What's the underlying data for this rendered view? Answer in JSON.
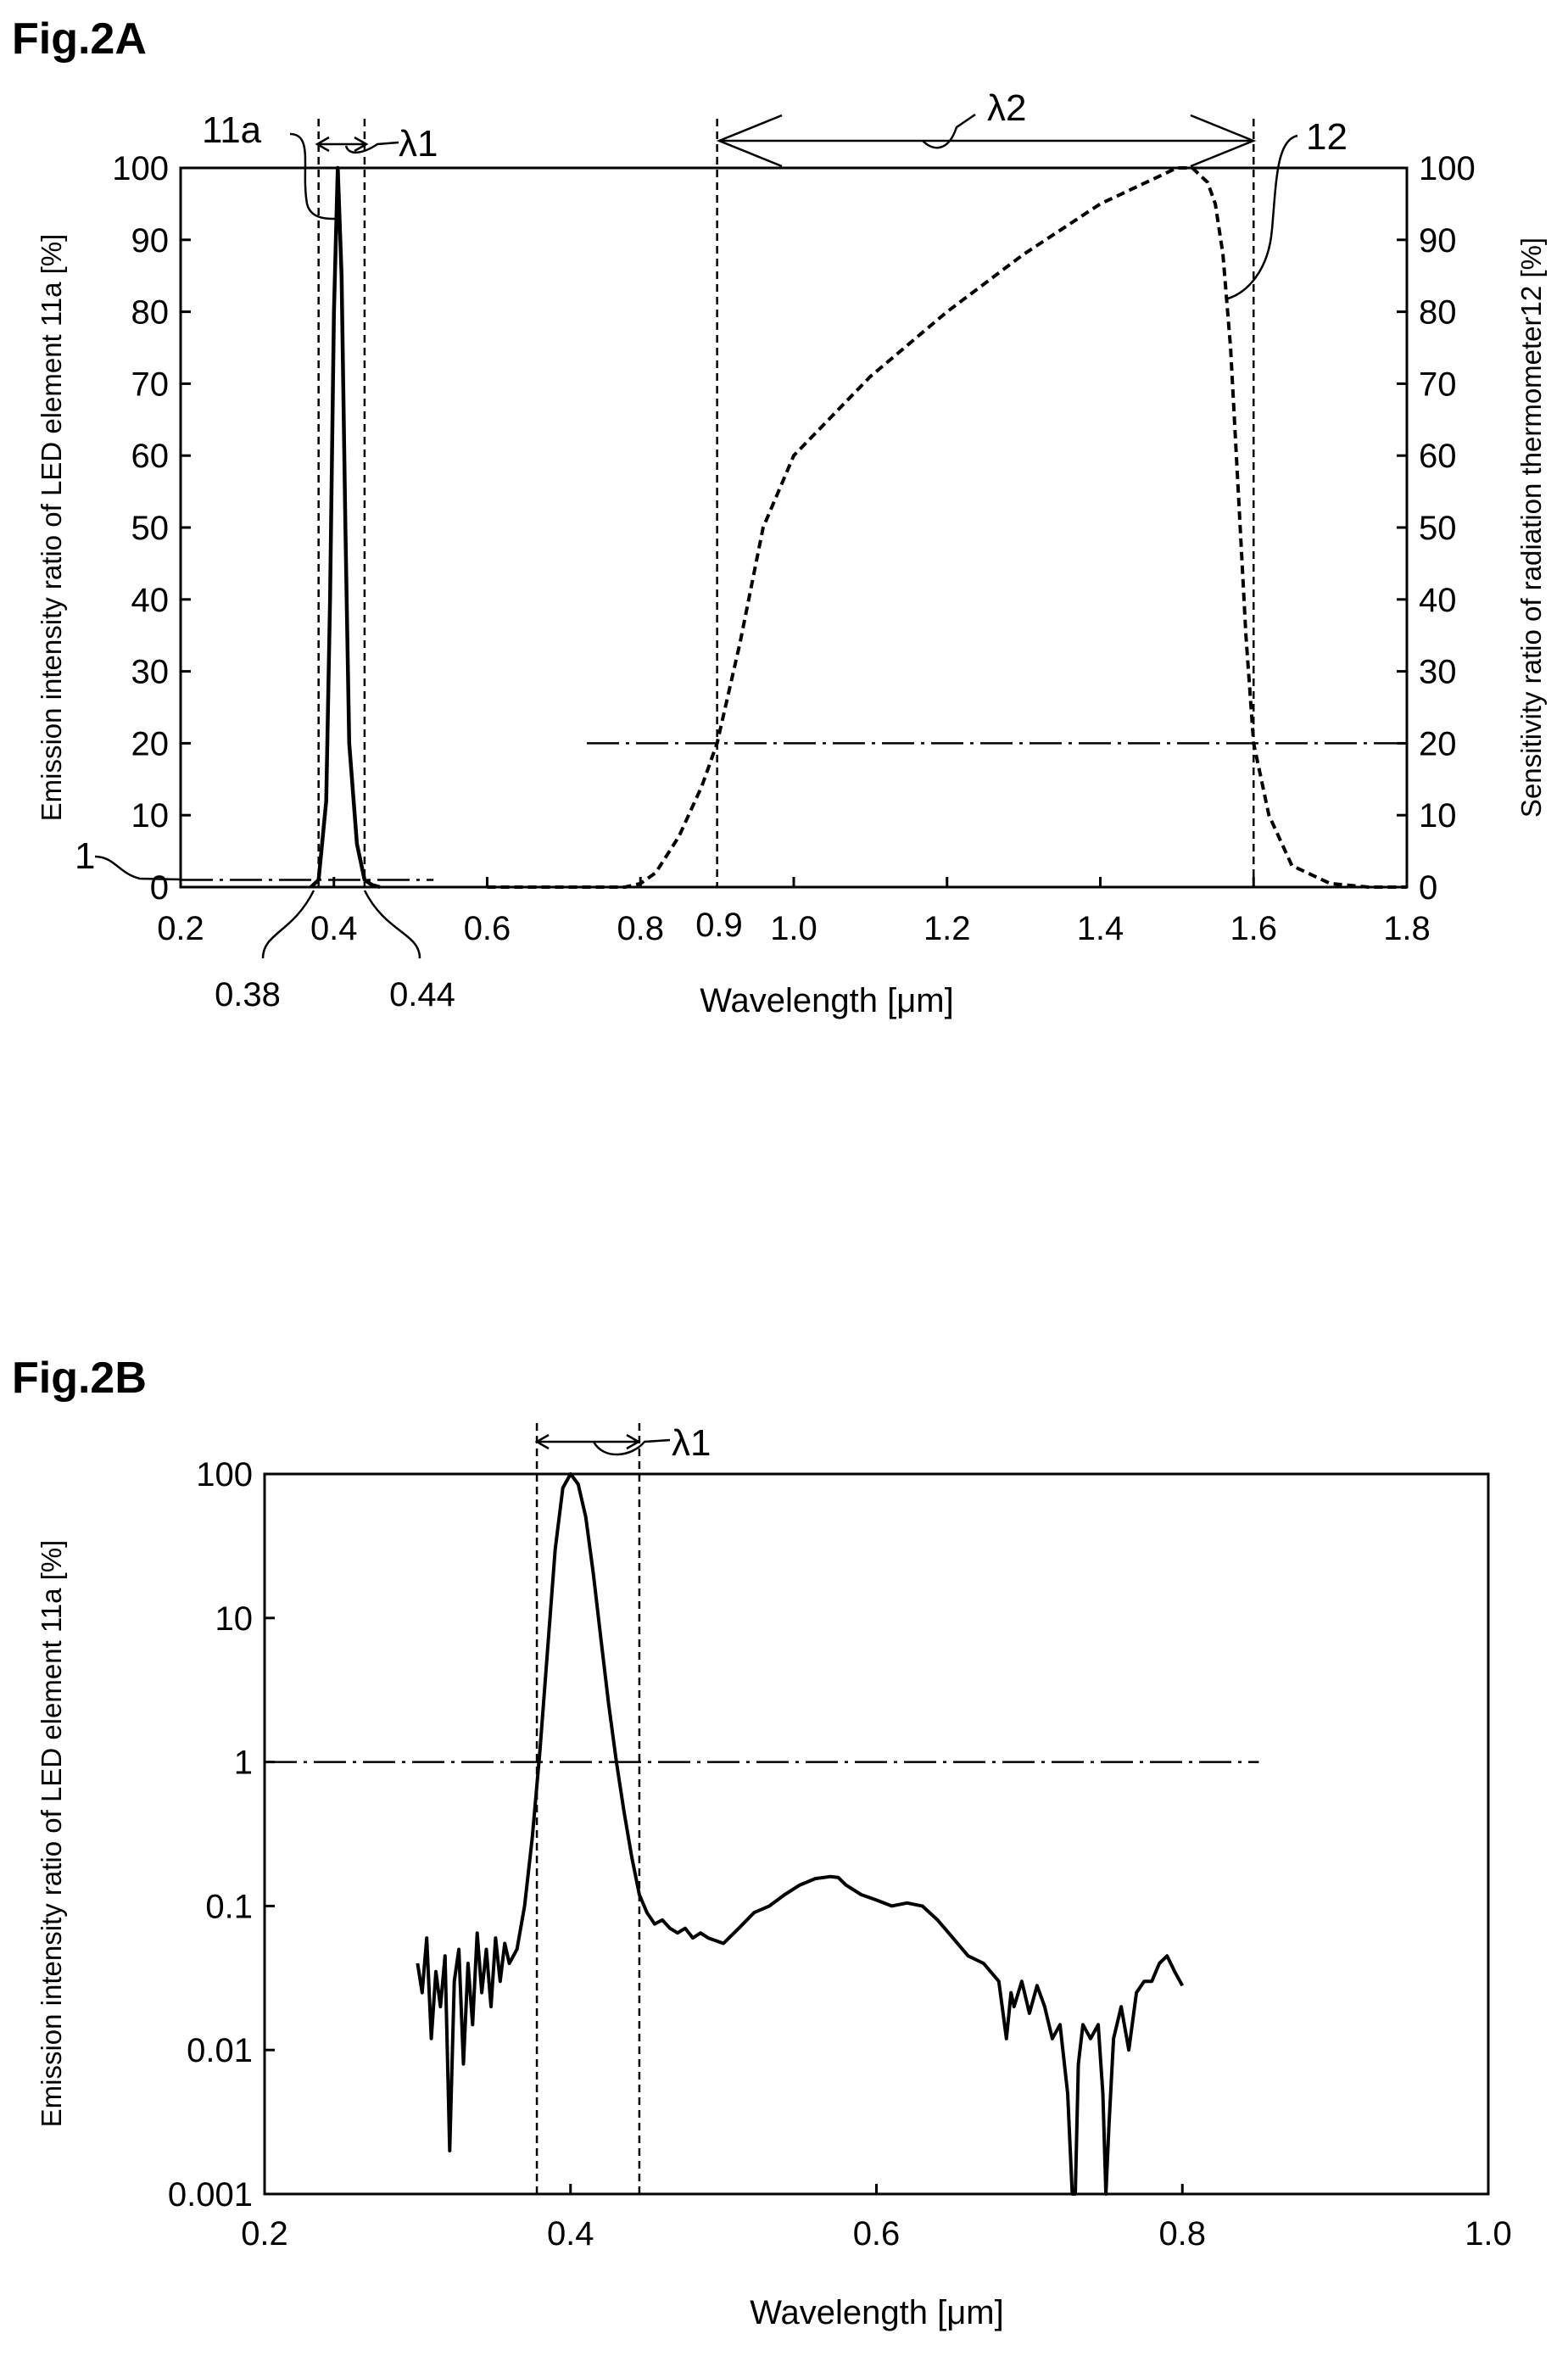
{
  "chart_data": [
    {
      "id": "fig2a",
      "type": "line",
      "title": "Fig.2A",
      "xlabel": "Wavelength [μm]",
      "ylabel_left": "Emission intensity ratio of LED element 11a [%]",
      "ylabel_right": "Sensitivity ratio of radiation thermometer12 [%]",
      "xlim": [
        0.2,
        1.8
      ],
      "ylim": [
        0,
        100
      ],
      "xticks": [
        "0.2",
        "0.4",
        "0.6",
        "0.8",
        "1.0",
        "1.2",
        "1.4",
        "1.6",
        "1.8"
      ],
      "yticks": [
        "0",
        "10",
        "20",
        "30",
        "40",
        "50",
        "60",
        "70",
        "80",
        "90",
        "100"
      ],
      "extra_xticks": [
        "0.9",
        "0.38",
        "0.44"
      ],
      "grid": false,
      "annotations": {
        "led_label": "11a",
        "thermometer_label": "12",
        "band1_label": "λ1",
        "band2_label": "λ2",
        "threshold1_label": "1"
      },
      "series": [
        {
          "x": [
            0.37,
            0.38,
            0.39,
            0.395,
            0.4,
            0.405,
            0.41,
            0.415,
            0.42,
            0.43,
            0.44,
            0.45,
            0.46
          ],
          "y": [
            0,
            1,
            12,
            40,
            80,
            100,
            85,
            50,
            20,
            6,
            1,
            0.3,
            0
          ],
          "style": "solid"
        },
        {
          "x": [
            0.6,
            0.78,
            0.8,
            0.82,
            0.85,
            0.88,
            0.9,
            0.93,
            0.96,
            1.0,
            1.1,
            1.2,
            1.3,
            1.4,
            1.48,
            1.5,
            1.52,
            1.54,
            1.55,
            1.56,
            1.57,
            1.58,
            1.59,
            1.6,
            1.62,
            1.65,
            1.7,
            1.75,
            1.8
          ],
          "y": [
            0,
            0,
            0.5,
            2,
            7,
            14,
            20,
            34,
            50,
            60,
            71,
            80,
            88,
            95,
            99,
            100,
            100,
            98,
            95,
            88,
            75,
            55,
            35,
            20,
            10,
            3,
            0.5,
            0,
            0
          ],
          "style": "dashed"
        }
      ],
      "reference_lines": [
        {
          "orientation": "horizontal",
          "y": 1,
          "x_range": [
            0.2,
            0.53
          ]
        },
        {
          "orientation": "horizontal",
          "y": 20,
          "x_range": [
            0.73,
            1.8
          ]
        },
        {
          "orientation": "vertical",
          "x": 0.38
        },
        {
          "orientation": "vertical",
          "x": 0.44
        },
        {
          "orientation": "vertical",
          "x": 0.9
        },
        {
          "orientation": "vertical",
          "x": 1.6
        }
      ]
    },
    {
      "id": "fig2b",
      "type": "line",
      "title": "Fig.2B",
      "xlabel": "Wavelength [μm]",
      "ylabel": "Emission intensity ratio of LED element 11a [%]",
      "yscale": "log",
      "xlim": [
        0.2,
        1.0
      ],
      "ylim": [
        0.001,
        100
      ],
      "xticks": [
        "0.2",
        "0.4",
        "0.6",
        "0.8",
        "1.0"
      ],
      "yticks": [
        "0.001",
        "0.01",
        "0.1",
        "1",
        "10",
        "100"
      ],
      "grid": false,
      "annotations": {
        "band1_label": "λ1"
      },
      "series": [
        {
          "x": [
            0.3,
            0.303,
            0.306,
            0.309,
            0.312,
            0.315,
            0.318,
            0.321,
            0.324,
            0.327,
            0.33,
            0.333,
            0.336,
            0.339,
            0.342,
            0.345,
            0.348,
            0.351,
            0.354,
            0.357,
            0.36,
            0.365,
            0.37,
            0.375,
            0.38,
            0.385,
            0.39,
            0.395,
            0.4,
            0.405,
            0.41,
            0.415,
            0.42,
            0.425,
            0.43,
            0.435,
            0.44,
            0.445,
            0.45,
            0.455,
            0.46,
            0.465,
            0.47,
            0.475,
            0.48,
            0.485,
            0.49,
            0.5,
            0.51,
            0.52,
            0.53,
            0.54,
            0.55,
            0.56,
            0.57,
            0.575,
            0.58,
            0.59,
            0.6,
            0.61,
            0.62,
            0.63,
            0.64,
            0.65,
            0.66,
            0.67,
            0.68,
            0.685,
            0.688,
            0.69,
            0.695,
            0.7,
            0.705,
            0.71,
            0.715,
            0.72,
            0.725,
            0.728,
            0.73,
            0.732,
            0.735,
            0.74,
            0.745,
            0.748,
            0.75,
            0.752,
            0.755,
            0.76,
            0.765,
            0.77,
            0.775,
            0.78,
            0.785,
            0.79,
            0.795,
            0.8
          ],
          "y": [
            0.04,
            0.025,
            0.06,
            0.012,
            0.035,
            0.02,
            0.045,
            0.002,
            0.03,
            0.05,
            0.008,
            0.04,
            0.015,
            0.065,
            0.025,
            0.05,
            0.02,
            0.06,
            0.03,
            0.055,
            0.04,
            0.05,
            0.1,
            0.3,
            1.2,
            6,
            30,
            80,
            100,
            85,
            50,
            20,
            7,
            2.5,
            1,
            0.45,
            0.22,
            0.12,
            0.09,
            0.075,
            0.08,
            0.07,
            0.065,
            0.07,
            0.06,
            0.065,
            0.06,
            0.055,
            0.07,
            0.09,
            0.1,
            0.12,
            0.14,
            0.155,
            0.16,
            0.158,
            0.14,
            0.12,
            0.11,
            0.1,
            0.105,
            0.1,
            0.08,
            0.06,
            0.045,
            0.04,
            0.03,
            0.012,
            0.025,
            0.02,
            0.03,
            0.018,
            0.028,
            0.02,
            0.012,
            0.015,
            0.005,
            0.001,
            0.001,
            0.008,
            0.015,
            0.012,
            0.015,
            0.005,
            0.001,
            0.003,
            0.012,
            0.02,
            0.01,
            0.025,
            0.03,
            0.03,
            0.04,
            0.045,
            0.035,
            0.028
          ],
          "style": "solid"
        }
      ],
      "reference_lines": [
        {
          "orientation": "horizontal",
          "y": 1,
          "x_range": [
            0.2,
            0.85
          ]
        },
        {
          "orientation": "vertical",
          "x": 0.378
        },
        {
          "orientation": "vertical",
          "x": 0.445
        }
      ]
    }
  ]
}
